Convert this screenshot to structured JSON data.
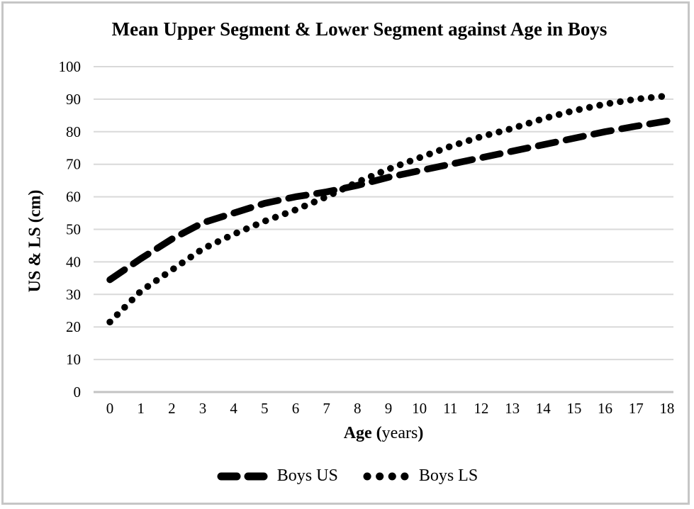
{
  "figure": {
    "xlabel_parts": [
      {
        "text": "Age (",
        "bold": true
      },
      {
        "text": "years",
        "bold": false
      },
      {
        "text": ")",
        "bold": true
      }
    ],
    "ylabel_parts": [
      {
        "text": "US & LS (cm)",
        "bold": true
      }
    ]
  },
  "chart_data": {
    "type": "line",
    "title": "Mean Upper Segment & Lower Segment against Age in Boys",
    "xlabel": "Age (years)",
    "ylabel": "US & LS (cm)",
    "x": [
      0,
      1,
      2,
      3,
      4,
      5,
      6,
      7,
      8,
      9,
      10,
      11,
      12,
      13,
      14,
      15,
      16,
      17,
      18
    ],
    "series": [
      {
        "name": "Boys US",
        "style": "dashed",
        "values": [
          34.5,
          41,
          47,
          52,
          55,
          58,
          60,
          61.5,
          63.5,
          66,
          68,
          70,
          72,
          74,
          76,
          78,
          80,
          81.7,
          83.3
        ]
      },
      {
        "name": "Boys LS",
        "style": "dotted",
        "values": [
          21.5,
          31,
          37.5,
          44,
          48.5,
          52.5,
          56,
          60,
          64.5,
          68.5,
          72,
          75.5,
          78.5,
          81,
          84,
          86.5,
          88.5,
          90,
          91
        ]
      }
    ],
    "ylim": [
      0,
      100
    ],
    "ytick_step": 10,
    "xlim": [
      0,
      18
    ],
    "grid": true,
    "legend_position": "bottom",
    "colors": {
      "line": "#000000",
      "gridline": "#d9d9d9",
      "axis_line": "#c3c3c3",
      "text": "#000000"
    }
  }
}
